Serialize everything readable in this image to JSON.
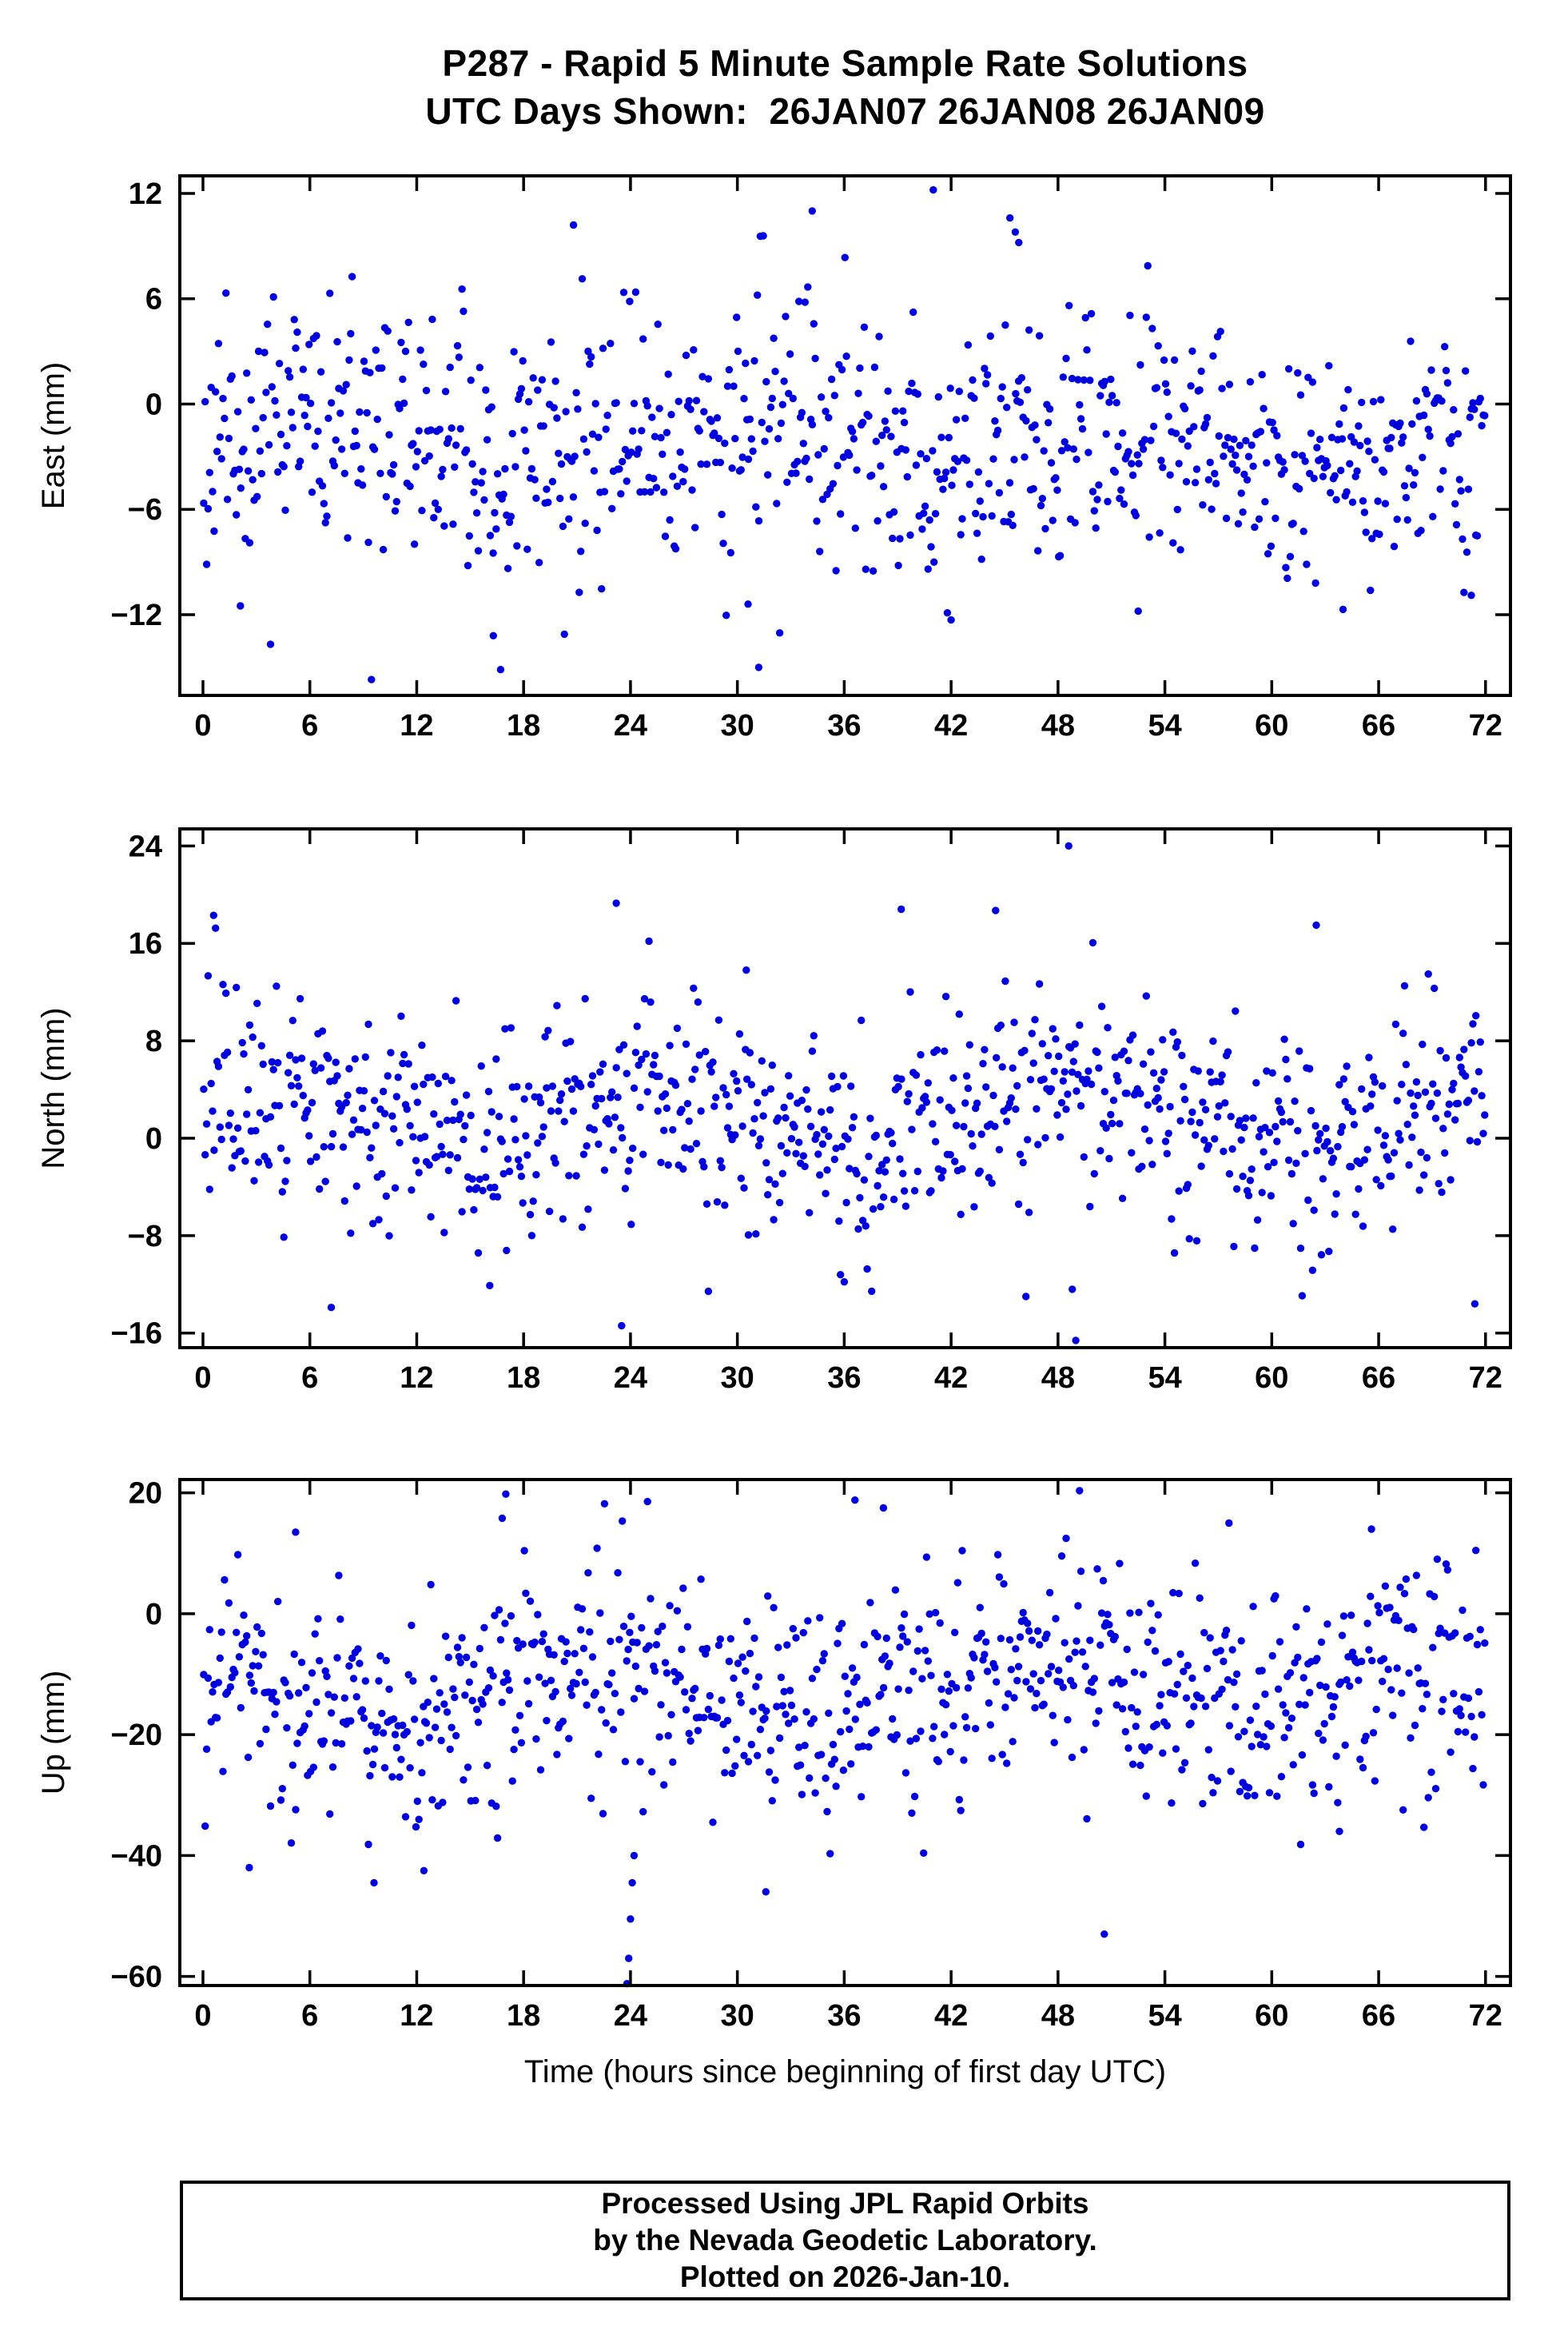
{
  "header": {
    "title": "P287 - Rapid 5 Minute Sample Rate Solutions",
    "subtitle": "UTC Days Shown:  26JAN07 26JAN08 26JAN09"
  },
  "charts_common": {
    "x_title": "Time (hours since beginning of first day UTC)",
    "xlim": [
      -1.3,
      73.4
    ],
    "xticks": [
      0,
      6,
      12,
      18,
      24,
      30,
      36,
      42,
      48,
      54,
      60,
      66,
      72
    ],
    "sample_rate": "5 minute",
    "n_points_per_panel": 864,
    "point_color": "#0000dd",
    "frame_color": "#000000"
  },
  "chart_data": [
    {
      "type": "scatter",
      "ylabel": "East (mm)",
      "ylim": [
        -16.6,
        13.0
      ],
      "yticks": [
        12,
        6,
        0,
        -6,
        -12
      ],
      "n_points": 864,
      "mean": -2.2,
      "std": 3.3,
      "diurnal_amp": 1.0,
      "phase": 0.3,
      "seed": 11,
      "outliers": [
        [
          41.0,
          12.2
        ],
        [
          45.3,
          10.6
        ],
        [
          45.6,
          9.8
        ],
        [
          45.8,
          9.2
        ],
        [
          34.2,
          11.0
        ],
        [
          20.8,
          10.2
        ],
        [
          33.8,
          5.8
        ],
        [
          16.3,
          -13.2
        ],
        [
          31.2,
          -15.0
        ],
        [
          30.6,
          -11.4
        ],
        [
          42.0,
          -12.3
        ],
        [
          52.5,
          -11.8
        ],
        [
          71.2,
          -10.9
        ],
        [
          2.1,
          -11.5
        ],
        [
          64.0,
          -11.7
        ]
      ]
    },
    {
      "type": "scatter",
      "ylabel": "North (mm)",
      "ylim": [
        -17.2,
        25.4
      ],
      "yticks": [
        24,
        16,
        8,
        0,
        -8,
        -16
      ],
      "n_points": 864,
      "mean": 1.8,
      "std": 4.3,
      "diurnal_amp": 2.0,
      "phase": 1.2,
      "seed": 22,
      "outliers": [
        [
          48.6,
          24.0
        ],
        [
          23.2,
          19.3
        ],
        [
          39.2,
          18.8
        ],
        [
          44.5,
          18.7
        ],
        [
          0.6,
          18.3
        ],
        [
          62.5,
          17.5
        ],
        [
          30.5,
          13.8
        ],
        [
          49.0,
          -16.6
        ],
        [
          23.5,
          -15.4
        ],
        [
          71.4,
          -13.6
        ],
        [
          7.2,
          -13.9
        ],
        [
          16.1,
          -12.1
        ],
        [
          36.0,
          -11.8
        ],
        [
          46.2,
          -13.0
        ],
        [
          48.8,
          -12.4
        ]
      ]
    },
    {
      "type": "scatter",
      "ylabel": "Up (mm)",
      "ylim": [
        -61.5,
        22.2
      ],
      "yticks": [
        20,
        0,
        -20,
        -40,
        -60
      ],
      "n_points": 864,
      "mean": -13.0,
      "std": 9.5,
      "diurnal_amp": 4.0,
      "phase": 2.0,
      "seed": 33,
      "outliers": [
        [
          23.8,
          -62.5
        ],
        [
          23.9,
          -57.0
        ],
        [
          24.0,
          -50.5
        ],
        [
          24.1,
          -44.5
        ],
        [
          24.2,
          -40.0
        ],
        [
          50.6,
          -53.0
        ],
        [
          2.6,
          -42.0
        ],
        [
          9.6,
          -44.5
        ],
        [
          31.6,
          -46.0
        ],
        [
          12.4,
          -42.5
        ],
        [
          63.8,
          -36.0
        ],
        [
          17.0,
          19.8
        ],
        [
          36.6,
          18.8
        ],
        [
          38.2,
          17.5
        ],
        [
          16.8,
          15.8
        ],
        [
          57.6,
          15.0
        ],
        [
          65.6,
          14.0
        ],
        [
          5.2,
          13.5
        ]
      ]
    }
  ],
  "footer": {
    "lines": [
      "Processed Using JPL Rapid Orbits",
      "by the Nevada Geodetic Laboratory.",
      "Plotted on 2026-Jan-10."
    ]
  }
}
